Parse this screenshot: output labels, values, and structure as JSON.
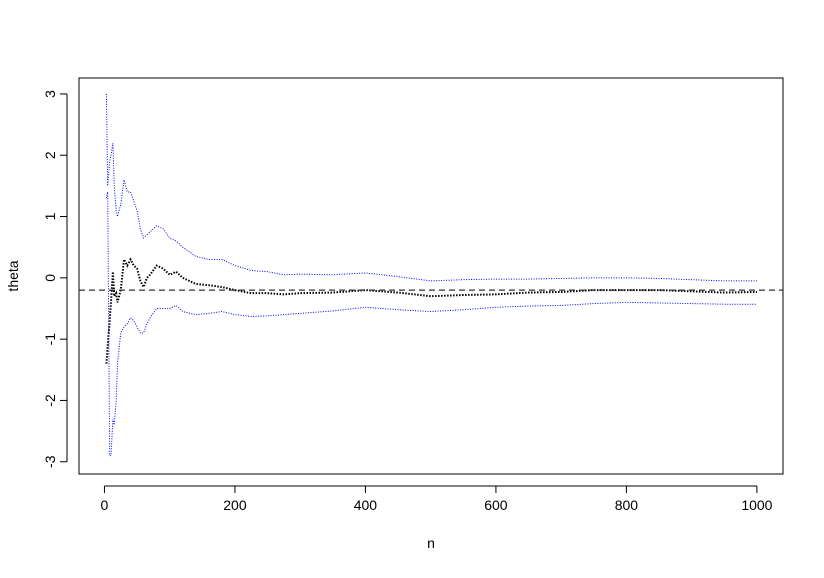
{
  "chart_data": {
    "type": "line",
    "xlabel": "n",
    "ylabel": "theta",
    "x": [
      3,
      5,
      8,
      10,
      13,
      15,
      18,
      20,
      25,
      30,
      35,
      40,
      45,
      50,
      55,
      60,
      65,
      70,
      80,
      90,
      100,
      110,
      120,
      140,
      160,
      180,
      200,
      225,
      250,
      275,
      300,
      350,
      400,
      450,
      500,
      550,
      600,
      650,
      700,
      750,
      800,
      850,
      900,
      950,
      1000
    ],
    "series": [
      {
        "color": "#000000",
        "values": [
          -1.4,
          -1.1,
          -0.7,
          -0.4,
          0.1,
          -0.3,
          -0.25,
          -0.4,
          -0.2,
          0.3,
          0.2,
          0.3,
          0.2,
          0.15,
          -0.05,
          -0.15,
          0.0,
          0.05,
          0.2,
          0.15,
          0.05,
          0.1,
          0.0,
          -0.1,
          -0.12,
          -0.15,
          -0.2,
          -0.25,
          -0.25,
          -0.27,
          -0.25,
          -0.24,
          -0.2,
          -0.24,
          -0.3,
          -0.28,
          -0.27,
          -0.24,
          -0.23,
          -0.2,
          -0.2,
          -0.2,
          -0.22,
          -0.24,
          -0.23
        ]
      },
      {
        "color": "#0000ff",
        "values": [
          3.0,
          1.5,
          1.9,
          2.0,
          2.2,
          1.5,
          1.1,
          1.0,
          1.2,
          1.6,
          1.4,
          1.4,
          1.25,
          1.1,
          0.8,
          0.65,
          0.7,
          0.75,
          0.85,
          0.8,
          0.65,
          0.6,
          0.5,
          0.35,
          0.3,
          0.3,
          0.2,
          0.12,
          0.1,
          0.05,
          0.06,
          0.05,
          0.08,
          0.02,
          -0.05,
          -0.03,
          -0.02,
          -0.02,
          -0.01,
          0.0,
          0.0,
          -0.01,
          -0.03,
          -0.05,
          -0.05
        ]
      },
      {
        "color": "#0000ff",
        "values": [
          1.3,
          1.4,
          -2.9,
          -2.9,
          -2.3,
          -2.4,
          -2.0,
          -1.4,
          -0.9,
          -0.8,
          -0.75,
          -0.65,
          -0.7,
          -0.8,
          -0.9,
          -0.9,
          -0.75,
          -0.65,
          -0.5,
          -0.5,
          -0.5,
          -0.45,
          -0.55,
          -0.6,
          -0.58,
          -0.55,
          -0.6,
          -0.63,
          -0.62,
          -0.6,
          -0.58,
          -0.54,
          -0.48,
          -0.52,
          -0.55,
          -0.52,
          -0.48,
          -0.46,
          -0.45,
          -0.42,
          -0.4,
          -0.41,
          -0.42,
          -0.43,
          -0.43
        ]
      }
    ],
    "reference_line": -0.2,
    "xlim": [
      -39,
      1040
    ],
    "ylim": [
      -3.2,
      3.26
    ],
    "xticks": [
      0,
      200,
      400,
      600,
      800,
      1000
    ],
    "yticks": [
      -3,
      -2,
      -1,
      0,
      1,
      2,
      3
    ]
  }
}
